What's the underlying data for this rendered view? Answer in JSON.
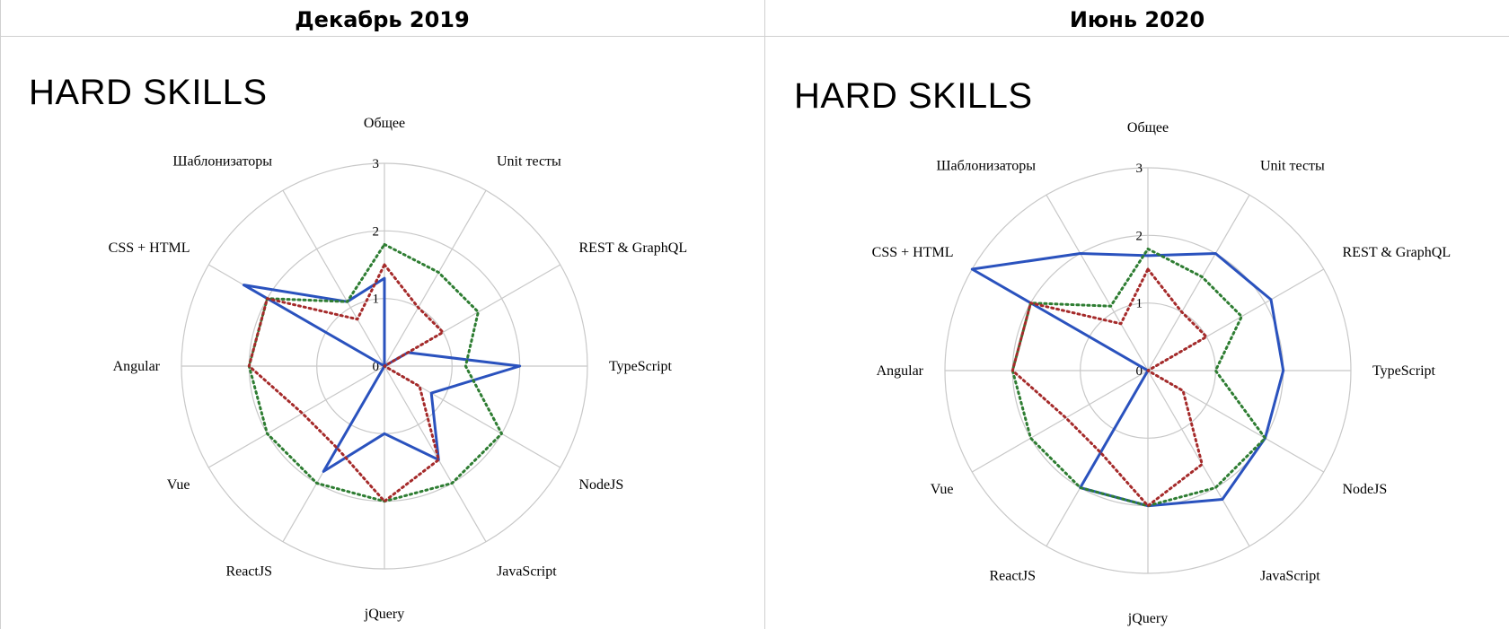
{
  "header": {
    "left_title": "Декабрь 2019",
    "right_title": "Июнь 2020"
  },
  "chart_data": [
    {
      "type": "radar",
      "title": "HARD SKILLS",
      "period": "Декабрь 2019",
      "axes": [
        "Общее",
        "Unit тесты",
        "REST & GraphQL",
        "TypeScript",
        "NodeJS",
        "JavaScript",
        "jQuery",
        "ReactJS",
        "Vue",
        "Angular",
        "CSS + HTML",
        "Шаблонизаторы"
      ],
      "rlim": [
        0,
        3
      ],
      "ticks": [
        "0",
        "1",
        "2",
        "3"
      ],
      "grid": true,
      "series": [
        {
          "color": "#2a52be",
          "style": "solid",
          "values": [
            1.3,
            0,
            0.4,
            2,
            0.8,
            1.6,
            1,
            1.8,
            0,
            0,
            2.4,
            1.1
          ]
        },
        {
          "color": "#2e7d32",
          "style": "dotted",
          "values": [
            1.8,
            1.6,
            1.6,
            1.2,
            2,
            2,
            2,
            2,
            2,
            2,
            2,
            1.1
          ]
        },
        {
          "color": "#a52a2a",
          "style": "dotted",
          "values": [
            1.5,
            1,
            1,
            0,
            0.6,
            1.6,
            2,
            1.4,
            1.4,
            2,
            2,
            0.8
          ]
        }
      ]
    },
    {
      "type": "radar",
      "title": "HARD SKILLS",
      "period": "Июнь 2020",
      "axes": [
        "Общее",
        "Unit тесты",
        "REST & GraphQL",
        "TypeScript",
        "NodeJS",
        "JavaScript",
        "jQuery",
        "ReactJS",
        "Vue",
        "Angular",
        "CSS + HTML",
        "Шаблонизаторы"
      ],
      "rlim": [
        0,
        3
      ],
      "ticks": [
        "0",
        "1",
        "2",
        "3"
      ],
      "grid": true,
      "series": [
        {
          "color": "#2a52be",
          "style": "solid",
          "values": [
            1.7,
            2,
            2.1,
            2,
            2,
            2.2,
            2,
            2,
            0,
            0,
            3,
            2
          ]
        },
        {
          "color": "#2e7d32",
          "style": "dotted",
          "values": [
            1.8,
            1.6,
            1.6,
            1,
            2,
            2,
            2,
            2,
            2,
            2,
            2,
            1.1
          ]
        },
        {
          "color": "#a52a2a",
          "style": "dotted",
          "values": [
            1.5,
            1,
            1,
            0,
            0.6,
            1.6,
            2,
            1.4,
            1.4,
            2,
            2,
            0.8
          ]
        }
      ]
    }
  ]
}
